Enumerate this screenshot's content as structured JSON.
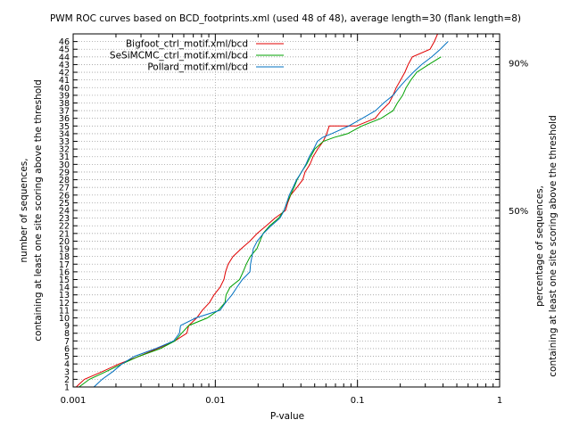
{
  "chart_data": {
    "type": "line",
    "title": "PWM ROC curves based on BCD_footprints.xml (used 48 of 48), average length=30 (flank length=8)",
    "xlabel": "P-value",
    "ylabel": "number of sequences,",
    "ylabel2": "containing at least one site scoring above the threshold",
    "y2label": "percentage of sequences,",
    "y2label2": "containing at least one site scoring above the threshold",
    "x_scale": "log",
    "xlim": [
      0.001,
      1
    ],
    "ylim": [
      1,
      47
    ],
    "x_ticks": [
      0.001,
      0.01,
      0.1,
      1
    ],
    "x_tick_labels": [
      "0.001",
      "0.01",
      "0.1",
      "1"
    ],
    "y_tick_labels": [
      "1",
      "2",
      "3",
      "4",
      "5",
      "6",
      "7",
      "8",
      "9",
      "10",
      "11",
      "12",
      "13",
      "14",
      "15",
      "16",
      "17",
      "18",
      "19",
      "20",
      "21",
      "22",
      "23",
      "24",
      "25",
      "26",
      "27",
      "28",
      "29",
      "30",
      "31",
      "32",
      "33",
      "34",
      "35",
      "36",
      "37",
      "38",
      "39",
      "40",
      "41",
      "42",
      "43",
      "44",
      "45",
      "46"
    ],
    "y2_ticks": [
      {
        "label": "50%",
        "y": 24
      },
      {
        "label": "90%",
        "y": 43.2
      }
    ],
    "grid": true,
    "legend_position": "top-left",
    "series": [
      {
        "name": "Bigfoot_ctrl_motif.xml/bcd",
        "color": "#e00000",
        "x": [
          0.00105,
          0.0012,
          0.0016,
          0.0021,
          0.0029,
          0.0039,
          0.0052,
          0.0063,
          0.0065,
          0.0074,
          0.0081,
          0.0091,
          0.0098,
          0.0108,
          0.0115,
          0.0118,
          0.0123,
          0.0133,
          0.0152,
          0.0175,
          0.0197,
          0.0228,
          0.0263,
          0.0312,
          0.0323,
          0.0339,
          0.0375,
          0.0412,
          0.0428,
          0.0463,
          0.0487,
          0.0525,
          0.0574,
          0.0608,
          0.0633,
          0.0982,
          0.1331,
          0.1472,
          0.1672,
          0.1778,
          0.1872,
          0.2011,
          0.2154,
          0.2275,
          0.2434,
          0.3241,
          0.3472,
          0.3665
        ],
        "y": [
          1,
          2,
          3,
          4,
          5,
          6,
          7,
          8,
          9,
          10,
          11,
          12,
          13,
          14,
          15,
          16,
          17,
          18,
          19,
          20,
          21,
          22,
          23,
          24,
          25,
          26,
          27,
          28,
          29,
          30,
          31,
          32,
          33,
          34,
          35,
          35,
          36,
          37,
          38,
          39,
          40,
          41,
          42,
          43,
          44,
          45,
          46,
          47
        ]
      },
      {
        "name": "SeSiMCMC_ctrl_motif.xml/bcd",
        "color": "#00a000",
        "x": [
          0.0011,
          0.0013,
          0.0017,
          0.0022,
          0.0029,
          0.0041,
          0.0052,
          0.0058,
          0.0065,
          0.0088,
          0.0105,
          0.0117,
          0.0119,
          0.0127,
          0.0148,
          0.0157,
          0.0165,
          0.0176,
          0.0196,
          0.0206,
          0.0217,
          0.0241,
          0.0279,
          0.0304,
          0.0319,
          0.0338,
          0.0358,
          0.0376,
          0.0403,
          0.0439,
          0.0468,
          0.0501,
          0.0574,
          0.0683,
          0.0852,
          0.1073,
          0.1468,
          0.1781,
          0.1908,
          0.2079,
          0.2198,
          0.2375,
          0.2617,
          0.3165,
          0.3872
        ],
        "y": [
          1,
          2,
          3,
          4,
          5,
          6,
          7,
          8,
          9,
          10,
          11,
          12,
          13,
          14,
          15,
          16,
          17,
          18,
          19,
          20,
          21,
          22,
          23,
          24,
          25,
          26,
          27,
          28,
          29,
          30,
          31,
          32,
          33,
          33.5,
          34,
          35,
          36,
          37,
          38,
          39,
          40,
          41,
          42,
          43,
          44
        ]
      },
      {
        "name": "Pollard_motif.xml/bcd",
        "color": "#0070c0",
        "x": [
          0.0014,
          0.0016,
          0.0019,
          0.0022,
          0.0027,
          0.0038,
          0.0051,
          0.0056,
          0.0057,
          0.0073,
          0.0108,
          0.0118,
          0.0131,
          0.0142,
          0.0155,
          0.0175,
          0.0177,
          0.0181,
          0.0185,
          0.0197,
          0.0218,
          0.0247,
          0.0285,
          0.0305,
          0.0318,
          0.0331,
          0.0352,
          0.0373,
          0.0404,
          0.0434,
          0.0458,
          0.0492,
          0.0523,
          0.0567,
          0.0658,
          0.0868,
          0.1082,
          0.1339,
          0.1528,
          0.1782,
          0.1958,
          0.2191,
          0.2471,
          0.2828,
          0.3328,
          0.3827,
          0.4331
        ],
        "y": [
          1,
          2,
          3,
          4,
          5,
          6,
          7,
          8,
          9,
          10,
          11,
          12,
          13,
          14,
          15,
          16,
          17,
          18,
          19,
          20,
          21,
          22,
          23,
          24,
          25,
          26,
          27,
          28,
          29,
          30,
          31,
          32,
          33,
          33.5,
          34,
          35,
          36,
          37,
          38,
          39,
          40,
          41,
          42,
          43,
          44,
          45,
          46
        ]
      }
    ]
  }
}
